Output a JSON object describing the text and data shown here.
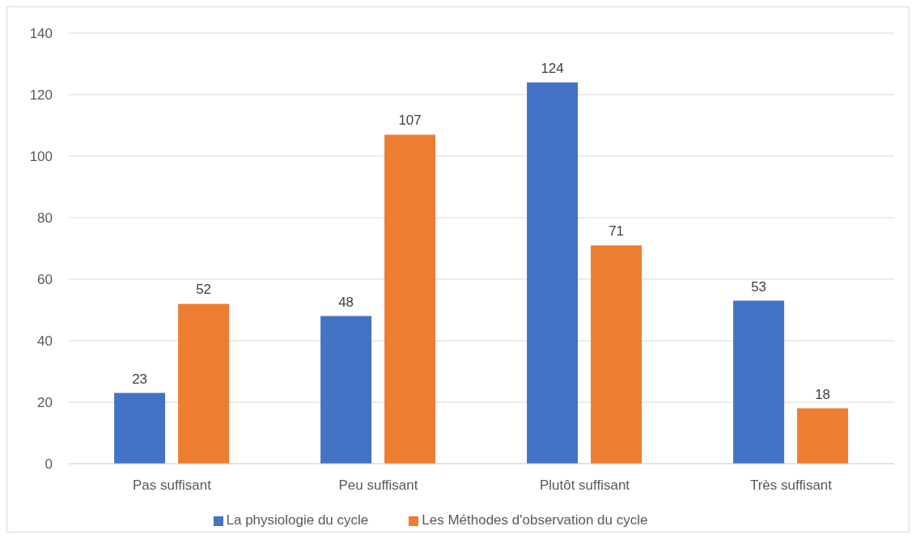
{
  "chart_data": {
    "type": "bar",
    "categories": [
      "Pas suffisant",
      "Peu suffisant",
      "Plutôt suffisant",
      "Très suffisant"
    ],
    "series": [
      {
        "name": "La physiologie du cycle",
        "color": "#4472c4",
        "values": [
          23,
          48,
          124,
          53
        ]
      },
      {
        "name": "Les Méthodes d'observation du cycle",
        "color": "#ed7d31",
        "values": [
          52,
          107,
          71,
          18
        ]
      }
    ],
    "ylim": [
      0,
      140
    ],
    "yticks": [
      0,
      20,
      40,
      60,
      80,
      100,
      120,
      140
    ],
    "grid": "y",
    "legend": "bottom",
    "data_labels": true
  }
}
